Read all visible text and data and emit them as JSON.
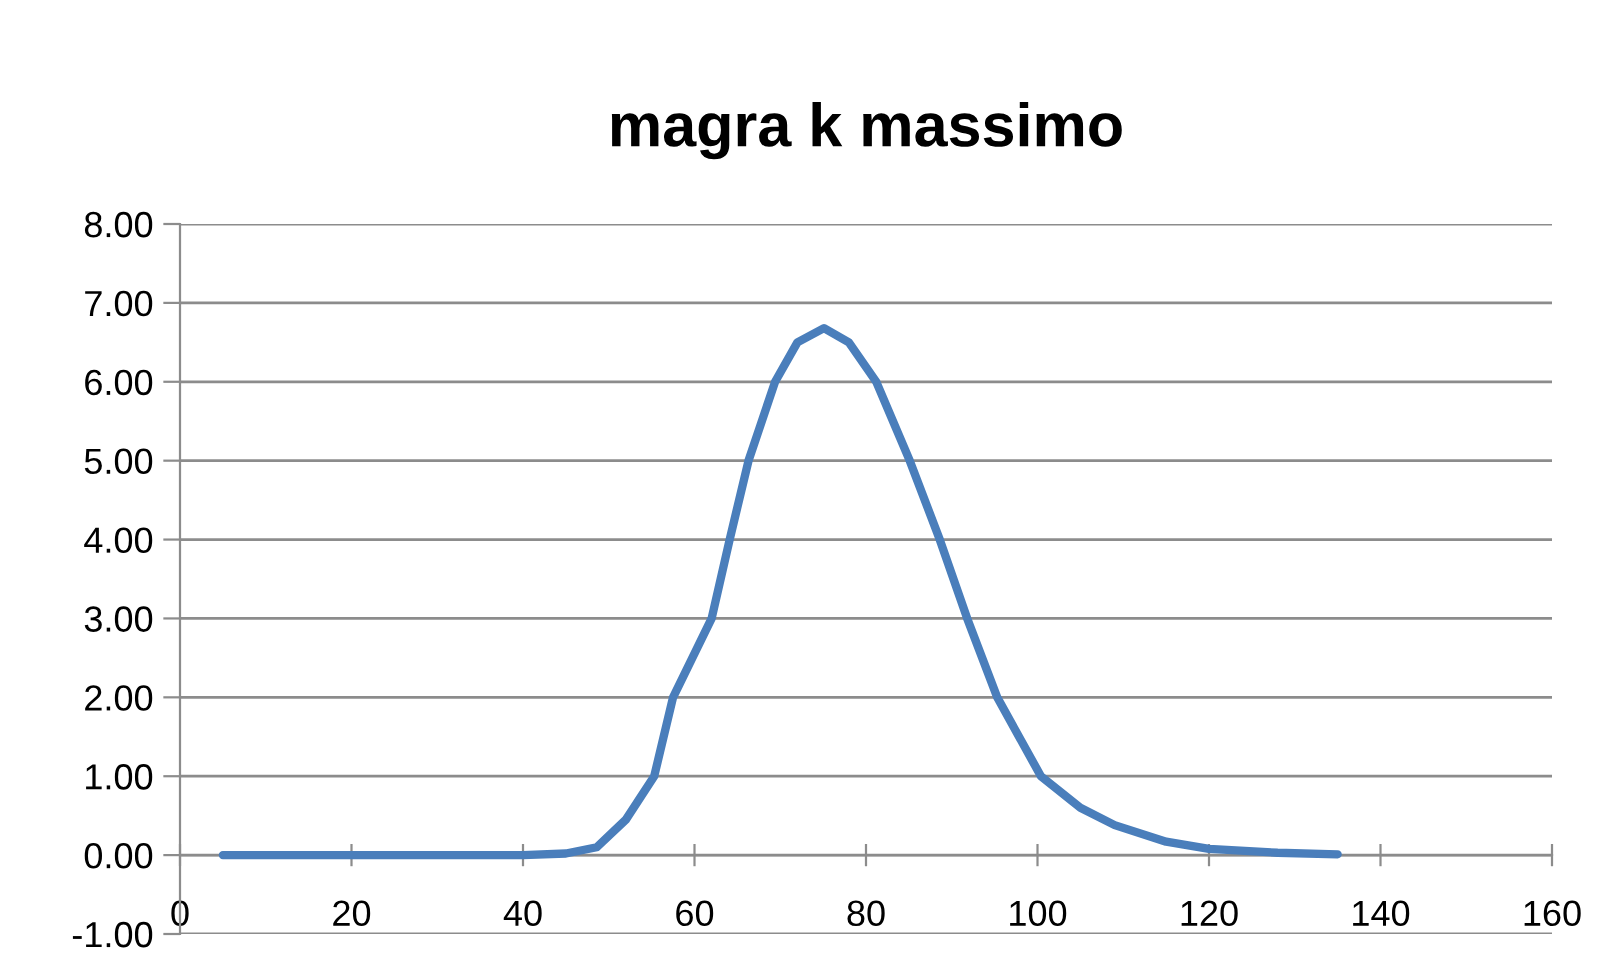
{
  "chart_data": {
    "type": "line",
    "title": "magra k massimo",
    "x": [
      5,
      20,
      40,
      45,
      48.6,
      52,
      55.3,
      57.5,
      62.0,
      64.1,
      66.3,
      69.4,
      72,
      75.1,
      78,
      81.2,
      85.1,
      88.6,
      91.8,
      95.3,
      100.4,
      105,
      109.0,
      115,
      120,
      128,
      135
    ],
    "series": [
      {
        "color": "#4a7ebb",
        "values": [
          0,
          0,
          0,
          0.02,
          0.1,
          0.45,
          1.0,
          2.0,
          3.0,
          4.0,
          5.0,
          6.0,
          6.5,
          6.68,
          6.5,
          6.0,
          5.0,
          4.0,
          3.0,
          2.0,
          1.0,
          0.6,
          0.38,
          0.17,
          0.08,
          0.03,
          0.01
        ]
      }
    ],
    "xlim": [
      0,
      160
    ],
    "xticks": [
      0,
      20,
      40,
      60,
      80,
      100,
      120,
      140,
      160
    ],
    "ylim": [
      -1,
      8
    ],
    "yticks": [
      {
        "value": -1,
        "label": "-1.00"
      },
      {
        "value": 0,
        "label": "0.00"
      },
      {
        "value": 1,
        "label": "1.00"
      },
      {
        "value": 2,
        "label": "2.00"
      },
      {
        "value": 3,
        "label": "3.00"
      },
      {
        "value": 4,
        "label": "4.00"
      },
      {
        "value": 5,
        "label": "5.00"
      },
      {
        "value": 6,
        "label": "6.00"
      },
      {
        "value": 7,
        "label": "7.00"
      },
      {
        "value": 8,
        "label": "8.00"
      }
    ],
    "grid": "y",
    "legend": false,
    "marker": "none",
    "line_style": "solid"
  }
}
